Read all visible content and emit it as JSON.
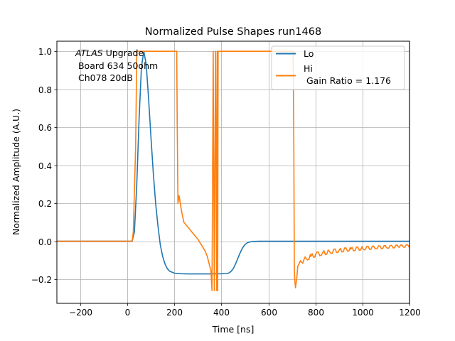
{
  "chart_data": {
    "type": "line",
    "title": "Normalized Pulse Shapes run1468",
    "xlabel": "Time [ns]",
    "ylabel": "Normalized Amplitude (A.U.)",
    "xlim": [
      -300,
      1200
    ],
    "ylim": [
      -0.327,
      1.053
    ],
    "xticks": [
      -200,
      0,
      200,
      400,
      600,
      800,
      1000,
      1200
    ],
    "xtick_labels": [
      "−200",
      "0",
      "200",
      "400",
      "600",
      "800",
      "1000",
      "1200"
    ],
    "yticks": [
      -0.2,
      0.0,
      0.2,
      0.4,
      0.6,
      0.8,
      1.0
    ],
    "ytick_labels": [
      "−0.2",
      "0.0",
      "0.2",
      "0.4",
      "0.6",
      "0.8",
      "1.0"
    ],
    "grid": true,
    "legend_position": "top-right",
    "annotation": {
      "lines": [
        "ATLAS Upgrade",
        " Board 634 50ohm",
        " Ch078 20dB"
      ],
      "italic_word": "ATLAS"
    },
    "series": [
      {
        "name": "Lo",
        "legend_label": "Lo",
        "color": "#1f77b4",
        "x": [
          -300,
          -100,
          0,
          20,
          30,
          40,
          50,
          60,
          70,
          80,
          90,
          100,
          110,
          120,
          130,
          140,
          150,
          160,
          170,
          180,
          200,
          230,
          260,
          300,
          350,
          400,
          420,
          430,
          440,
          450,
          460,
          470,
          480,
          490,
          500,
          510,
          520,
          540,
          560,
          600,
          700,
          800,
          1000,
          1200
        ],
        "y": [
          0.0,
          0.0,
          0.0,
          0.0,
          0.05,
          0.3,
          0.65,
          0.92,
          1.0,
          0.93,
          0.75,
          0.55,
          0.36,
          0.2,
          0.08,
          -0.02,
          -0.08,
          -0.12,
          -0.145,
          -0.158,
          -0.168,
          -0.171,
          -0.172,
          -0.172,
          -0.172,
          -0.171,
          -0.17,
          -0.168,
          -0.16,
          -0.145,
          -0.12,
          -0.09,
          -0.06,
          -0.035,
          -0.018,
          -0.008,
          -0.004,
          -0.001,
          0.0,
          0.0,
          0.0,
          0.0,
          0.0,
          0.0
        ]
      },
      {
        "name": "Hi",
        "legend_label": "Hi\n Gain Ratio = 1.176",
        "color": "#ff7f0e",
        "x": [
          -300,
          -100,
          0,
          20,
          25,
          35,
          40,
          50,
          60,
          100,
          150,
          200,
          205,
          210,
          212,
          215,
          220,
          225,
          230,
          235,
          240,
          250,
          260,
          270,
          280,
          290,
          300,
          310,
          320,
          330,
          340,
          350,
          355,
          360,
          365,
          370,
          375,
          380,
          382,
          384,
          386,
          388,
          390,
          392,
          394,
          396,
          398,
          400,
          500,
          600,
          700,
          705,
          708,
          710,
          712,
          715,
          720,
          725,
          730,
          740,
          750,
          760,
          780,
          800,
          830,
          860,
          900,
          950,
          1000,
          1050,
          1100,
          1150,
          1200
        ],
        "y": [
          0.0,
          0.0,
          0.0,
          0.0,
          0.05,
          0.5,
          1.0,
          1.0,
          1.0,
          1.0,
          1.0,
          1.0,
          1.0,
          1.0,
          0.6,
          0.2,
          0.24,
          0.2,
          0.16,
          0.13,
          0.1,
          0.085,
          0.07,
          0.055,
          0.04,
          0.025,
          0.01,
          -0.01,
          -0.03,
          -0.05,
          -0.08,
          -0.13,
          -0.15,
          -0.26,
          1.0,
          -0.26,
          1.0,
          -0.26,
          1.0,
          -0.26,
          1.0,
          1.0,
          1.0,
          1.0,
          1.0,
          1.0,
          1.0,
          1.0,
          1.0,
          1.0,
          1.0,
          1.0,
          0.5,
          -0.15,
          -0.2,
          -0.245,
          -0.2,
          -0.13,
          -0.12,
          -0.11,
          -0.1,
          -0.09,
          -0.08,
          -0.07,
          -0.062,
          -0.055,
          -0.048,
          -0.042,
          -0.037,
          -0.033,
          -0.03,
          -0.027,
          -0.024
        ]
      }
    ]
  }
}
